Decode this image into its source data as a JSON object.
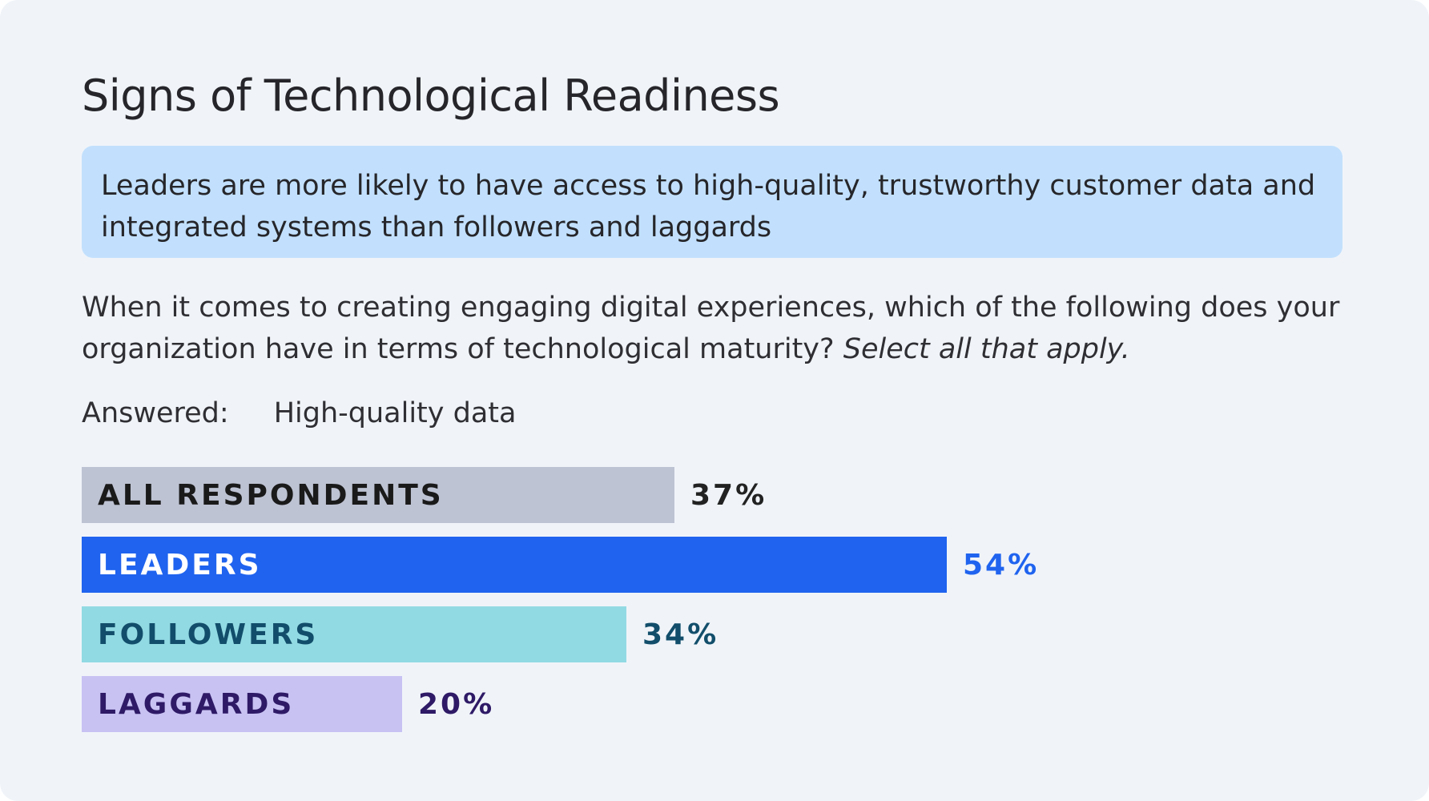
{
  "title": "Signs of Technological Readiness",
  "callout": "Leaders are more likely to have access to high-quality, trustworthy customer data and integrated systems than followers and laggards",
  "question": {
    "text": "When it comes to creating engaging digital experiences, which of the following does your organization have in terms of technological maturity?",
    "emphasis": "Select all that apply."
  },
  "answered": {
    "label": "Answered:",
    "value": "High-quality data"
  },
  "chart_data": {
    "type": "bar",
    "orientation": "horizontal",
    "categories": [
      "ALL RESPONDENTS",
      "LEADERS",
      "FOLLOWERS",
      "LAGGARDS"
    ],
    "values": [
      37,
      54,
      34,
      20
    ],
    "value_labels": [
      "37%",
      "54%",
      "34%",
      "20%"
    ],
    "unit": "%",
    "grid": false,
    "colors": {
      "bars": [
        "#bec3d3",
        "#1f63ef",
        "#92dae3",
        "#c8c2f3"
      ],
      "labels": [
        "#1a1a1a",
        "#ffffff",
        "#124e6b",
        "#2e1a66"
      ],
      "values": [
        "#222222",
        "#1f63ef",
        "#124e6b",
        "#2e1a66"
      ]
    }
  }
}
